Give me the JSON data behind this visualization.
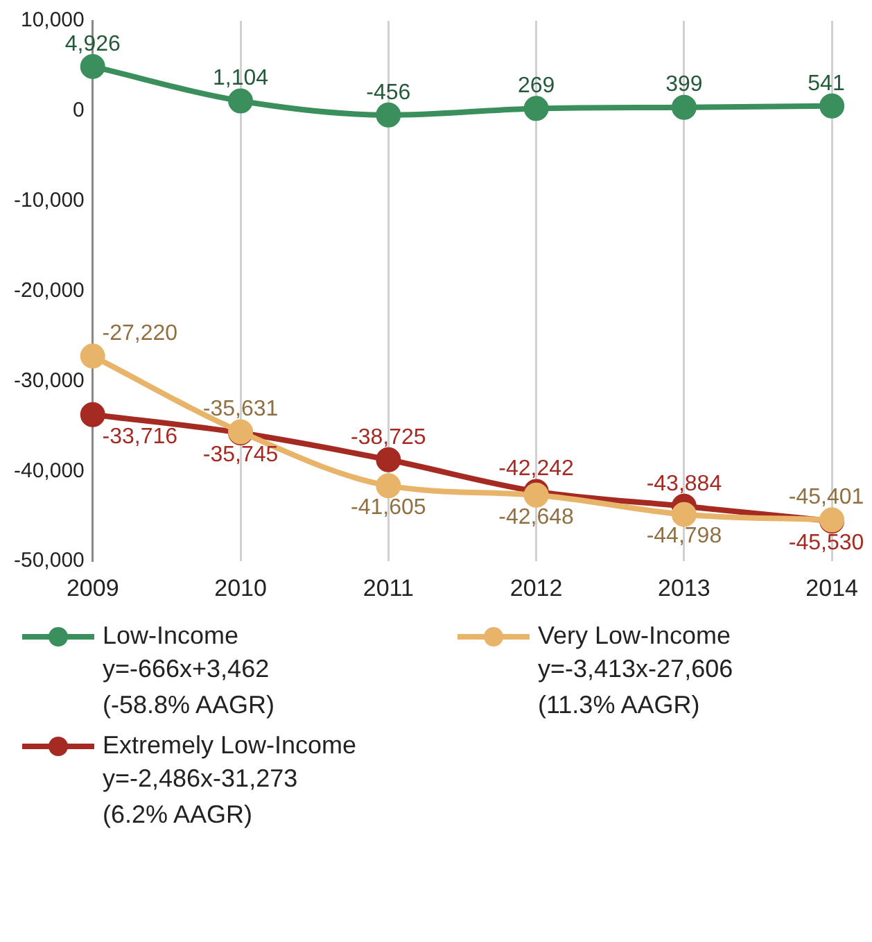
{
  "chart_data": {
    "type": "line",
    "categories": [
      "2009",
      "2010",
      "2011",
      "2012",
      "2013",
      "2014"
    ],
    "series": [
      {
        "name": "Low-Income",
        "color": "#3a8f5c",
        "values": [
          4926,
          1104,
          -456,
          269,
          399,
          541
        ],
        "value_labels": [
          "4,926",
          "1,104",
          "-456",
          "269",
          "399",
          "541"
        ]
      },
      {
        "name": "Very Low-Income",
        "color": "#e8b46a",
        "values": [
          -27220,
          -35631,
          -41605,
          -42648,
          -44798,
          -45401
        ],
        "value_labels": [
          "-27,220",
          "-35,631",
          "-41,605",
          "-42,648",
          "-44,798",
          "-45,401"
        ]
      },
      {
        "name": "Extremely Low-Income",
        "color": "#a52a22",
        "values": [
          -33716,
          -35745,
          -38725,
          -42242,
          -43884,
          -45530
        ],
        "value_labels": [
          "-33,716",
          "-35,745",
          "-38,725",
          "-42,242",
          "-43,884",
          "-45,530"
        ]
      }
    ],
    "ylim": [
      -50000,
      10000
    ],
    "yticks": [
      {
        "value": -50000,
        "label": "-50,000"
      },
      {
        "value": -40000,
        "label": "-40,000"
      },
      {
        "value": -30000,
        "label": "-30,000"
      },
      {
        "value": -20000,
        "label": "-20,000"
      },
      {
        "value": -10000,
        "label": "-10,000"
      },
      {
        "value": 0,
        "label": "0"
      },
      {
        "value": 10000,
        "label": "10,000"
      }
    ],
    "grid": "x",
    "legend": "bottom",
    "marker": "circle",
    "line_style": "solid",
    "annotations": [
      "y=-666x+3,462",
      "(-58.8% AAGR)",
      "y=-3,413x-27,606",
      "(11.3% AAGR)",
      "y=-2,486x-31,273",
      "(6.2% AAGR)"
    ]
  }
}
